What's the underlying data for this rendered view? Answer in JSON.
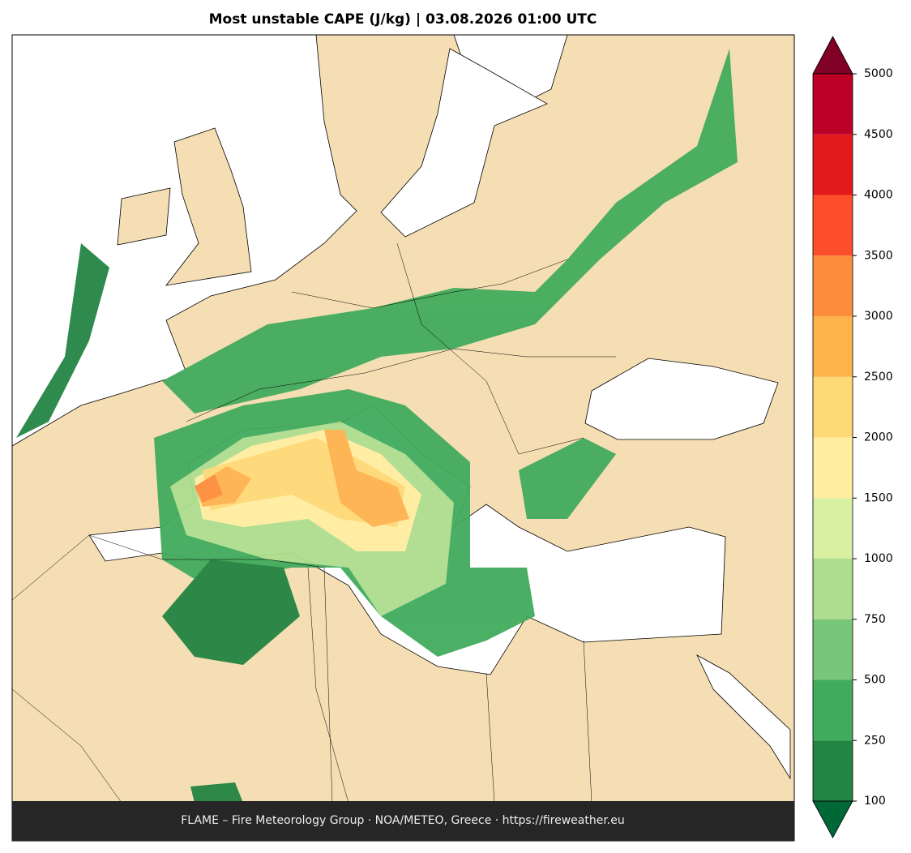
{
  "title": "Most unstable CAPE (J/kg)  |  03.08.2026 01:00 UTC",
  "colorbar": {
    "ticks": [
      100,
      250,
      500,
      750,
      1000,
      1500,
      2000,
      2500,
      3000,
      3500,
      4000,
      4500,
      5000
    ],
    "colors": [
      "#238443",
      "#41ab5d",
      "#78c679",
      "#addd8e",
      "#d9f0a3",
      "#ffeda0",
      "#fed976",
      "#feb24c",
      "#fd8d3c",
      "#fc4e2a",
      "#e31a1c",
      "#bd0026"
    ],
    "under_color": "#006837",
    "over_color": "#800026"
  },
  "footer": "FLAME – Fire Meteorology Group · NOA/METEO, Greece · https://fireweather.eu"
}
